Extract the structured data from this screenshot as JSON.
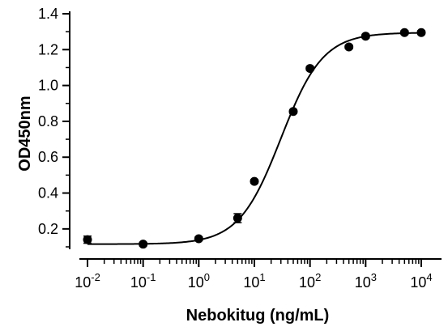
{
  "chart_data": {
    "type": "scatter",
    "title": "",
    "xlabel": "Nebokitug (ng/mL)",
    "ylabel": "OD450nm",
    "x_scale": "log10",
    "xlim": [
      0.01,
      10000
    ],
    "ylim": [
      0.1,
      1.4
    ],
    "x_ticks": [
      {
        "value": 0.01,
        "base": "10",
        "exp": "-2"
      },
      {
        "value": 0.1,
        "base": "10",
        "exp": "-1"
      },
      {
        "value": 1,
        "base": "10",
        "exp": "0"
      },
      {
        "value": 10,
        "base": "10",
        "exp": "1"
      },
      {
        "value": 100,
        "base": "10",
        "exp": "2"
      },
      {
        "value": 1000,
        "base": "10",
        "exp": "3"
      },
      {
        "value": 10000,
        "base": "10",
        "exp": "4"
      }
    ],
    "y_ticks": [
      {
        "value": 0.2,
        "label": "0.2"
      },
      {
        "value": 0.4,
        "label": "0.4"
      },
      {
        "value": 0.6,
        "label": "0.6"
      },
      {
        "value": 0.8,
        "label": "0.8"
      },
      {
        "value": 1.0,
        "label": "1.0"
      },
      {
        "value": 1.2,
        "label": "1.2"
      },
      {
        "value": 1.4,
        "label": "1.4"
      }
    ],
    "points": [
      {
        "x": 0.01,
        "y": 0.14,
        "err": 0.02
      },
      {
        "x": 0.1,
        "y": 0.115,
        "err": 0.01
      },
      {
        "x": 1,
        "y": 0.145,
        "err": 0.01
      },
      {
        "x": 5,
        "y": 0.26,
        "err": 0.025
      },
      {
        "x": 10,
        "y": 0.465,
        "err": 0.01
      },
      {
        "x": 50,
        "y": 0.855,
        "err": 0.01
      },
      {
        "x": 100,
        "y": 1.095,
        "err": 0.01
      },
      {
        "x": 500,
        "y": 1.215,
        "err": 0.01
      },
      {
        "x": 1000,
        "y": 1.275,
        "err": 0.01
      },
      {
        "x": 5000,
        "y": 1.295,
        "err": 0.01
      },
      {
        "x": 10000,
        "y": 1.295,
        "err": 0.01
      }
    ],
    "fit_curve": {
      "model": "4PL",
      "bottom": 0.115,
      "top": 1.295,
      "ec50": 30,
      "hill": 1.15
    },
    "grid": false,
    "legend": "none"
  }
}
